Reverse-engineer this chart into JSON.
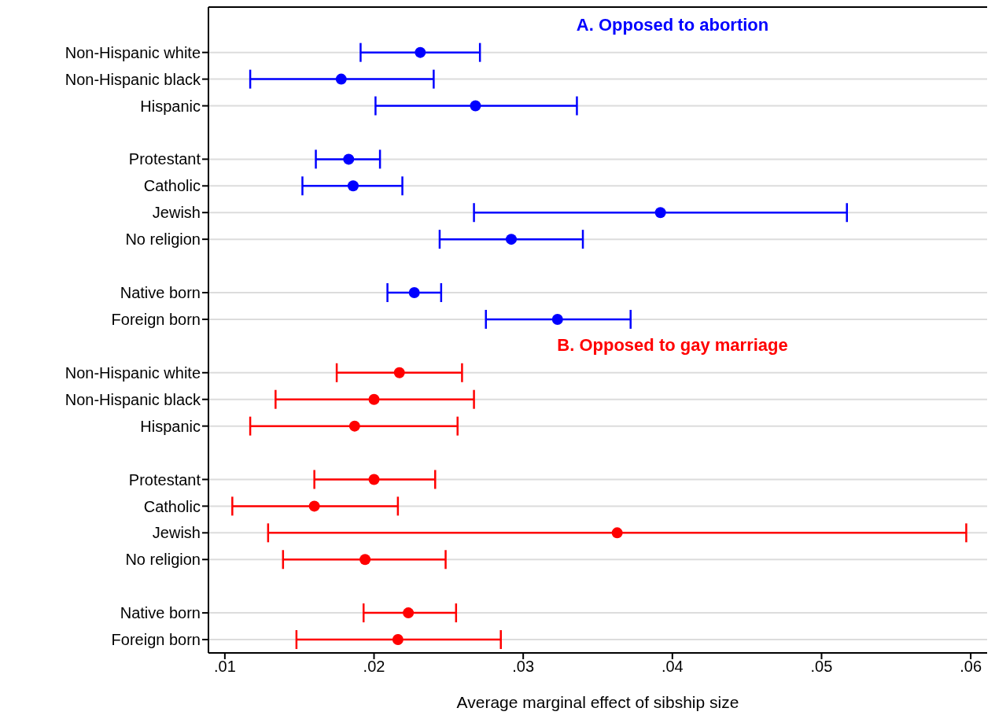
{
  "chart_data": {
    "type": "scatter",
    "orientation": "horizontal",
    "categories": [
      "Non-Hispanic white",
      "Non-Hispanic black",
      "Hispanic",
      null,
      "Protestant",
      "Catholic",
      "Jewish",
      "No religion",
      null,
      "Native born",
      "Foreign born",
      null,
      "Non-Hispanic white",
      "Non-Hispanic black",
      "Hispanic",
      null,
      "Protestant",
      "Catholic",
      "Jewish",
      "No religion",
      null,
      "Native born",
      "Foreign born"
    ],
    "series": [
      {
        "name": "A. Opposed to abortion",
        "color": "#0000ff",
        "values": [
          0.0231,
          0.0178,
          0.0268,
          null,
          0.0183,
          0.0186,
          0.0392,
          0.0292,
          null,
          0.0227,
          0.0323,
          null,
          null,
          null,
          null,
          null,
          null,
          null,
          null,
          null,
          null,
          null,
          null
        ],
        "errors": [
          [
            0.0191,
            0.0271
          ],
          [
            0.0117,
            0.024
          ],
          [
            0.0201,
            0.0336
          ],
          null,
          [
            0.0161,
            0.0204
          ],
          [
            0.0152,
            0.0219
          ],
          [
            0.0267,
            0.0517
          ],
          [
            0.0244,
            0.034
          ],
          null,
          [
            0.0209,
            0.0245
          ],
          [
            0.0275,
            0.0372
          ],
          null,
          null,
          null,
          null,
          null,
          null,
          null,
          null,
          null,
          null,
          null,
          null
        ]
      },
      {
        "name": "B. Opposed to gay marriage",
        "color": "#ff0000",
        "values": [
          null,
          null,
          null,
          null,
          null,
          null,
          null,
          null,
          null,
          null,
          null,
          null,
          0.0217,
          0.02,
          0.0187,
          null,
          0.02,
          0.016,
          0.0363,
          0.0194,
          null,
          0.0223,
          0.0216
        ],
        "errors": [
          null,
          null,
          null,
          null,
          null,
          null,
          null,
          null,
          null,
          null,
          null,
          null,
          [
            0.0175,
            0.0259
          ],
          [
            0.0134,
            0.0267
          ],
          [
            0.0117,
            0.0256
          ],
          null,
          [
            0.016,
            0.0241
          ],
          [
            0.0105,
            0.0216
          ],
          [
            0.0129,
            0.0597
          ],
          [
            0.0139,
            0.0248
          ],
          null,
          [
            0.0193,
            0.0255
          ],
          [
            0.0148,
            0.0285
          ]
        ]
      }
    ],
    "xlabel": "Average marginal effect of sibship size",
    "xlim": [
      0.0089,
      0.0611
    ],
    "xticks": [
      {
        "value": 0.01,
        "label": ".01"
      },
      {
        "value": 0.02,
        "label": ".02"
      },
      {
        "value": 0.03,
        "label": ".03"
      },
      {
        "value": 0.04,
        "label": ".04"
      },
      {
        "value": 0.05,
        "label": ".05"
      },
      {
        "value": 0.06,
        "label": ".06"
      }
    ],
    "grid": "y",
    "marker": "circle"
  }
}
